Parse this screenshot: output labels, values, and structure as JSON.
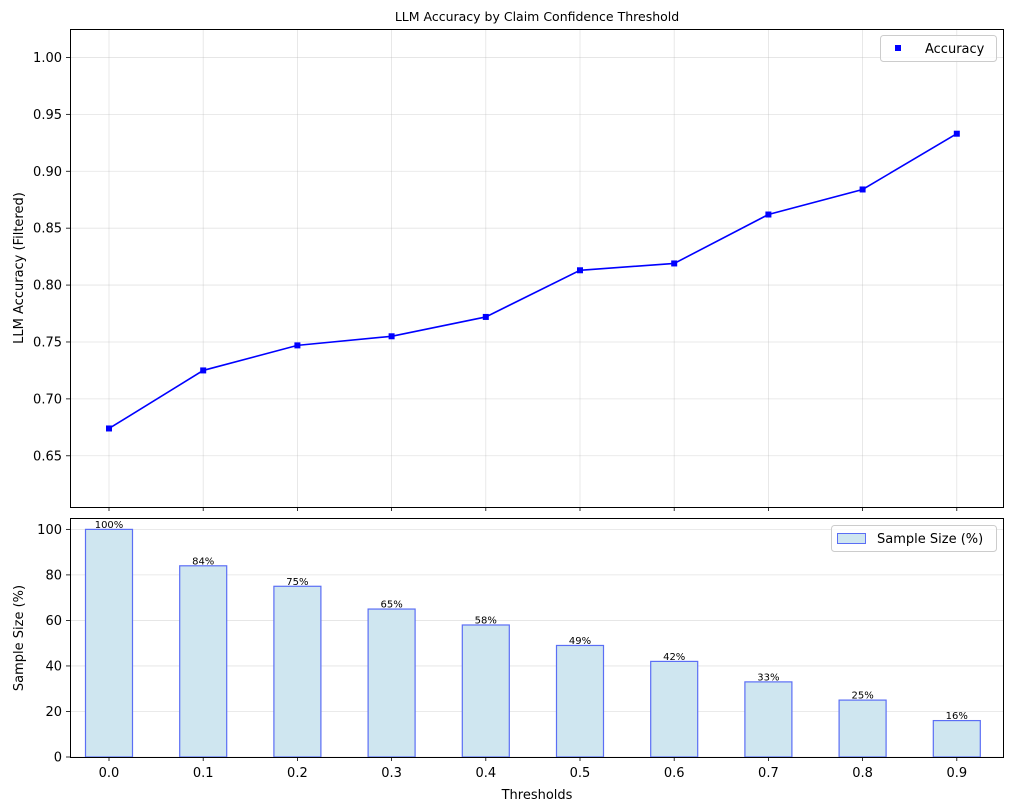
{
  "chart_data": [
    {
      "type": "line",
      "title": "LLM Accuracy by Claim Confidence Threshold",
      "xlabel": "",
      "ylabel": "LLM Accuracy (Filtered)",
      "x": [
        0.0,
        0.1,
        0.2,
        0.3,
        0.4,
        0.5,
        0.6,
        0.7,
        0.8,
        0.9
      ],
      "series": [
        {
          "name": "Accuracy",
          "values": [
            0.674,
            0.725,
            0.747,
            0.755,
            0.772,
            0.813,
            0.819,
            0.862,
            0.884,
            0.933
          ],
          "color": "#0000ff",
          "marker": "square"
        }
      ],
      "ylim": [
        0.605,
        1.025
      ],
      "yticks": [
        "0.65",
        "0.70",
        "0.75",
        "0.80",
        "0.85",
        "0.90",
        "0.95",
        "1.00"
      ],
      "grid": true,
      "legend": "top-right"
    },
    {
      "type": "bar",
      "title": "",
      "xlabel": "Thresholds",
      "ylabel": "Sample Size (%)",
      "categories": [
        "0.0",
        "0.1",
        "0.2",
        "0.3",
        "0.4",
        "0.5",
        "0.6",
        "0.7",
        "0.8",
        "0.9"
      ],
      "series": [
        {
          "name": "Sample Size (%)",
          "values": [
            100,
            84,
            75,
            65,
            58,
            49,
            42,
            33,
            25,
            16
          ],
          "data_labels": [
            "100%",
            "84%",
            "75%",
            "65%",
            "58%",
            "49%",
            "42%",
            "33%",
            "25%",
            "16%"
          ],
          "fill": "#cfe6f0",
          "edge": "#5b6ef5"
        }
      ],
      "ylim": [
        0,
        105
      ],
      "yticks": [
        "0",
        "20",
        "40",
        "60",
        "80",
        "100"
      ],
      "grid": true,
      "legend": "top-right"
    }
  ]
}
